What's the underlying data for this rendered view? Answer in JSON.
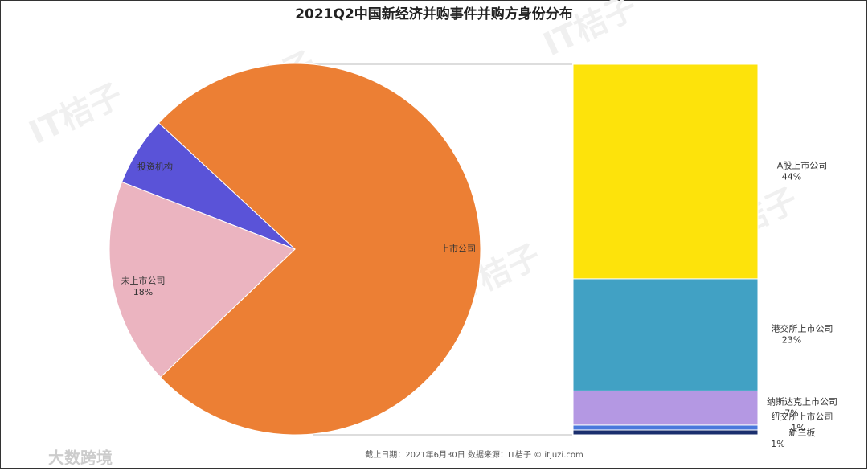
{
  "chart_data": [
    {
      "type": "pie",
      "title": "2021Q2中国新经济并购事件并购方身份分布",
      "source": "截止日期：2021年6月30日    数据来源：IT桔子 © itjuzi.com",
      "watermark": "IT桔子",
      "logo": "大数跨境",
      "categories": [
        "上市公司",
        "投资机构",
        "未上市公司"
      ],
      "values": [
        76,
        6,
        18
      ],
      "value_labels": [
        null,
        null,
        "18%"
      ],
      "colors": [
        "#ec7f34",
        "#5a53d8",
        "#ebb4c0"
      ]
    },
    {
      "type": "stacked-bar",
      "series": [
        {
          "name": "新三板",
          "color": "#1b2f6e",
          "values": [
            1
          ],
          "value_labels": [
            "1%"
          ]
        },
        {
          "name": "纽交所上市公司",
          "color": "#4a78dc",
          "values": [
            1
          ],
          "value_labels": [
            "1%"
          ]
        },
        {
          "name": "纳斯达克上市公司",
          "color": "#b498e3",
          "values": [
            7
          ],
          "value_labels": [
            "7%"
          ]
        },
        {
          "name": "港交所上市公司",
          "color": "#41a1c4",
          "values": [
            23
          ],
          "value_labels": [
            "23%"
          ]
        },
        {
          "name": "A股上市公司",
          "color": "#fde30b",
          "values": [
            44
          ],
          "value_labels": [
            "44%"
          ]
        }
      ]
    }
  ]
}
